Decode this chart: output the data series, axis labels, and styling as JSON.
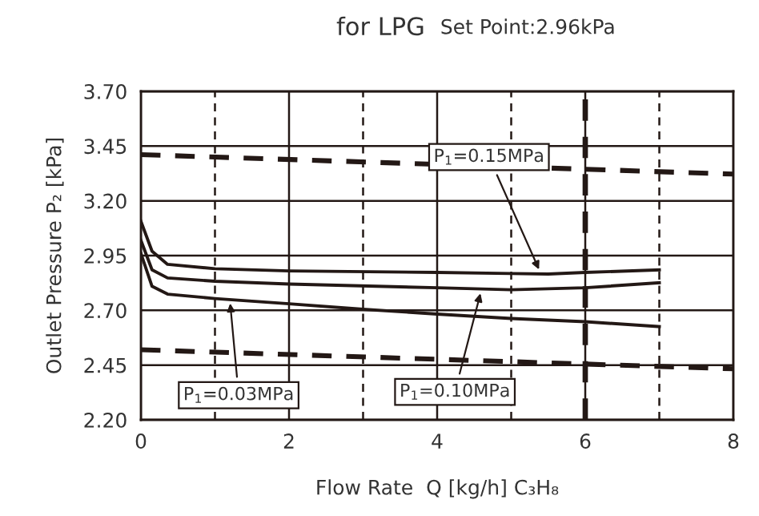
{
  "chart_data": {
    "type": "line",
    "title": "for LPG",
    "subtitle": "Set Point:2.96kPa",
    "xlabel": "Flow Rate  Q [kg/h] C₃H₈",
    "ylabel": "Outlet Pressure P₂ [kPa]",
    "xlim": [
      0,
      8
    ],
    "ylim": [
      2.2,
      3.7
    ],
    "xticks": [
      0,
      {
        "value": 1,
        "label": null
      },
      2,
      {
        "value": 3,
        "label": null
      },
      4,
      {
        "value": 5,
        "label": null
      },
      6,
      {
        "value": 7,
        "label": null
      },
      8
    ],
    "yticks": [
      {
        "value": 2.2,
        "label": "2.20"
      },
      2.45,
      {
        "value": 2.7,
        "label": "2.70"
      },
      2.95,
      {
        "value": 3.2,
        "label": "3.20"
      },
      3.45,
      {
        "value": 3.7,
        "label": "3.70"
      }
    ],
    "grid": true,
    "marker": "none",
    "series": [
      {
        "color": "#231815",
        "line_style": "solid",
        "x": [
          0,
          0.15,
          0.36,
          1,
          2,
          4,
          5,
          5.5,
          6,
          7
        ],
        "values": [
          3.107,
          2.97,
          2.91,
          2.89,
          2.88,
          2.873,
          2.868,
          2.866,
          2.873,
          2.885
        ]
      },
      {
        "color": "#231815",
        "line_style": "solid",
        "x": [
          0,
          0.15,
          0.36,
          1,
          2,
          4,
          5,
          6,
          7
        ],
        "values": [
          3.02,
          2.885,
          2.848,
          2.833,
          2.82,
          2.803,
          2.794,
          2.803,
          2.826
        ]
      },
      {
        "color": "#231815",
        "line_style": "solid",
        "x": [
          0,
          0.15,
          0.36,
          1,
          2,
          3,
          4,
          5,
          6,
          7
        ],
        "values": [
          2.96,
          2.81,
          2.774,
          2.754,
          2.73,
          2.705,
          2.683,
          2.663,
          2.648,
          2.626
        ]
      },
      {
        "color": "#231815",
        "line_style": "dashed",
        "x": [
          0,
          8
        ],
        "values": [
          3.411,
          3.322
        ]
      },
      {
        "color": "#231815",
        "line_style": "dashed",
        "x": [
          0,
          8
        ],
        "values": [
          2.52,
          2.433
        ]
      }
    ],
    "ref_lines": [
      {
        "axis": "x",
        "value": 6,
        "line_style": "dashed",
        "color": "#231815"
      }
    ],
    "annotations": [
      {
        "text": "P$_{1}$=0.15MPa",
        "x": 5.4,
        "y": 2.868
      },
      {
        "text": "P$_{1}$=0.10MPa",
        "x": 4.6,
        "y": 2.797
      },
      {
        "text": "P$_{1}$=0.03MPa",
        "x": 1.2,
        "y": 2.752
      }
    ]
  }
}
